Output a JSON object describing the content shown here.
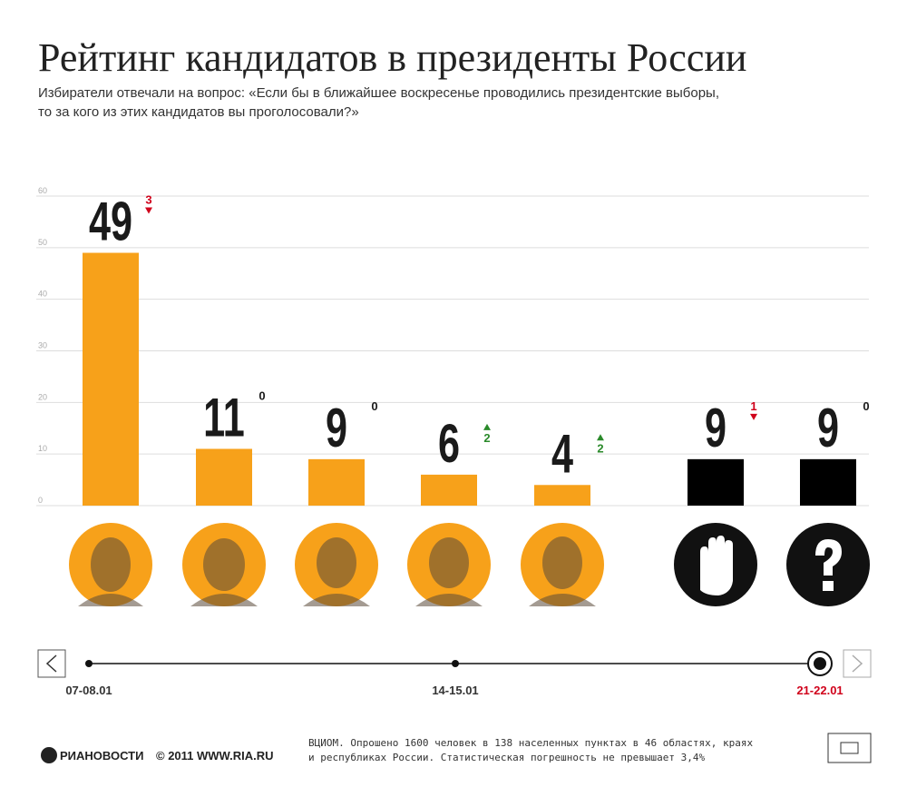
{
  "chart_data": {
    "type": "bar",
    "title": "Рейтинг кандидатов в президенты России",
    "subtitle": [
      "Избиратели отвечали на вопрос: «Если бы в ближайшее воскресенье проводились президентские выборы,",
      "то за кого из этих кандидатов вы проголосовали?»"
    ],
    "categories": [
      null,
      null,
      null,
      null,
      null,
      null,
      null
    ],
    "values": [
      49,
      11,
      9,
      6,
      4,
      9,
      9
    ],
    "colors": [
      "#f7a11a",
      "#f7a11a",
      "#f7a11a",
      "#f7a11a",
      "#f7a11a",
      "#000000",
      "#000000"
    ],
    "changes": [
      3,
      0,
      0,
      2,
      2,
      1,
      0
    ],
    "change_directions": [
      "down",
      null,
      null,
      "up",
      "up",
      "down",
      null
    ],
    "ylim": [
      0,
      60
    ],
    "yticks": [
      0,
      10,
      20,
      30,
      40,
      50,
      60
    ],
    "grid": true
  },
  "timeline": {
    "dates": [
      "07-08.01",
      "14-15.01",
      "21-22.01"
    ],
    "selected": 2
  },
  "footer": {
    "logo": "РИАНОВОСТИ",
    "copyright": "© 2011 WWW.RIA.RU",
    "note": [
      "ВЦИОМ. Опрошено 1600 человек в 138 населенных пунктах в 46 областях, краях",
      "и республиках России. Статистическая погрешность не превышает 3,4%"
    ]
  }
}
